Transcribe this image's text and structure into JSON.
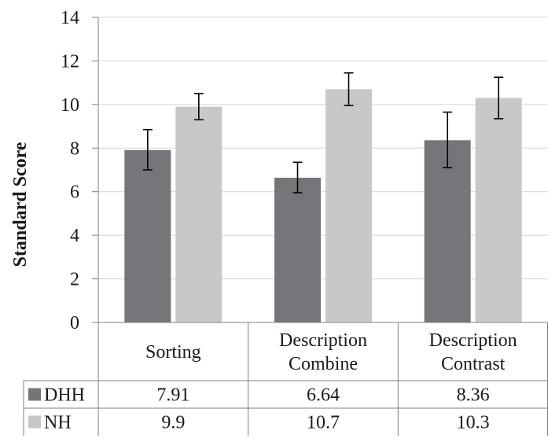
{
  "chart_data": {
    "type": "bar",
    "ylabel": "Standard Score",
    "ylim": [
      0,
      14
    ],
    "yticks": [
      0,
      2,
      4,
      6,
      8,
      10,
      12,
      14
    ],
    "grid": true,
    "legend_placement": "data-table-left",
    "categories": [
      [
        "Sorting"
      ],
      [
        "Description",
        "Combine"
      ],
      [
        "Description",
        "Contrast"
      ]
    ],
    "series": [
      {
        "name": "DHH",
        "color": "#76767a",
        "values": [
          7.91,
          6.64,
          8.36
        ],
        "labels": [
          "7.91",
          "6.64",
          "8.36"
        ],
        "err_low": [
          7.0,
          5.95,
          7.1
        ],
        "err_high": [
          8.85,
          7.35,
          9.65
        ]
      },
      {
        "name": "NH",
        "color": "#c8c8ca",
        "values": [
          9.9,
          10.7,
          10.3
        ],
        "labels": [
          "9.9",
          "10.7",
          "10.3"
        ],
        "err_low": [
          9.3,
          9.95,
          9.35
        ],
        "err_high": [
          10.5,
          11.45,
          11.25
        ]
      }
    ]
  }
}
